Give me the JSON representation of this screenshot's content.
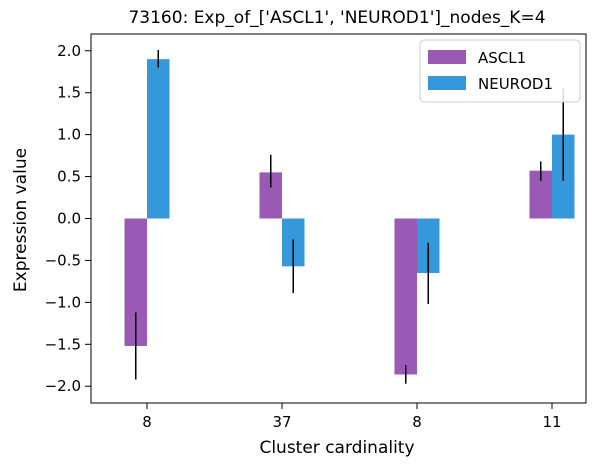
{
  "chart_data": {
    "type": "bar",
    "title": "73160: Exp_of_['ASCL1', 'NEUROD1']_nodes_K=4",
    "xlabel": "Cluster cardinality",
    "ylabel": "Expression value",
    "categories": [
      "8",
      "37",
      "8",
      "11"
    ],
    "ylim": [
      -2.2,
      2.2
    ],
    "yticks": [
      -2.0,
      -1.5,
      -1.0,
      -0.5,
      0.0,
      0.5,
      1.0,
      1.5,
      2.0
    ],
    "ytick_labels": [
      "−2.0",
      "−1.5",
      "−1.0",
      "−0.5",
      "0.0",
      "0.5",
      "1.0",
      "1.5",
      "2.0"
    ],
    "grid": false,
    "legend_position": "top-right",
    "series": [
      {
        "name": "ASCL1",
        "color": "#9b59b6",
        "values": [
          -1.52,
          0.55,
          -1.86,
          0.57
        ],
        "error_low": [
          -1.92,
          0.37,
          -1.97,
          0.45
        ],
        "error_high": [
          -1.12,
          0.76,
          -1.75,
          0.68
        ]
      },
      {
        "name": "NEUROD1",
        "color": "#3498db",
        "values": [
          1.9,
          -0.57,
          -0.65,
          1.0
        ],
        "error_low": [
          1.8,
          -0.89,
          -1.02,
          0.45
        ],
        "error_high": [
          2.01,
          -0.25,
          -0.29,
          1.55
        ]
      }
    ]
  }
}
